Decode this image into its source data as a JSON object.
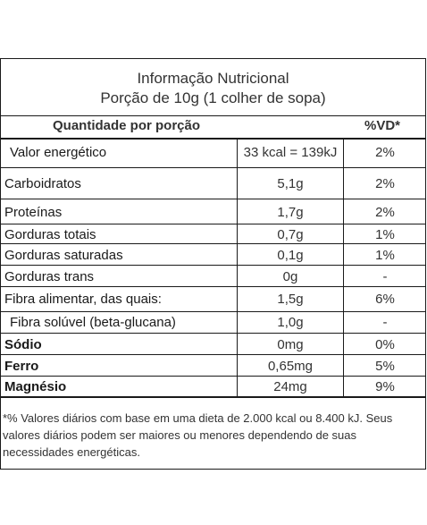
{
  "panel": {
    "title": "Informação Nutricional",
    "subtitle": "Porção de 10g (1 colher de sopa)",
    "header_label": "Quantidade por porção",
    "header_vd": "%VD*"
  },
  "rows": [
    {
      "label": "Valor energético",
      "qty": "33 kcal = 139kJ",
      "vd": "2%"
    },
    {
      "label": "Carboidratos",
      "qty": "5,1g",
      "vd": "2%"
    },
    {
      "label": "Proteínas",
      "qty": "1,7g",
      "vd": "2%"
    },
    {
      "label": "Gorduras totais",
      "qty": "0,7g",
      "vd": "1%"
    },
    {
      "label": "Gorduras saturadas",
      "qty": "0,1g",
      "vd": "1%"
    },
    {
      "label": "Gorduras trans",
      "qty": "0g",
      "vd": "-"
    },
    {
      "label": "Fibra alimentar, das quais:",
      "qty": "1,5g",
      "vd": "6%"
    },
    {
      "label": "Fibra solúvel (beta-glucana)",
      "qty": "1,0g",
      "vd": "-"
    },
    {
      "label": "Sódio",
      "qty": "0mg",
      "vd": "0%"
    },
    {
      "label": "Ferro",
      "qty": "0,65mg",
      "vd": "5%"
    },
    {
      "label": "Magnésio",
      "qty": "24mg",
      "vd": "9%"
    }
  ],
  "footnote": "*% Valores diários com base em uma dieta de 2.000 kcal ou 8.400 kJ. Seus valores diários podem ser maiores ou menores dependendo de suas necessidades energéticas."
}
